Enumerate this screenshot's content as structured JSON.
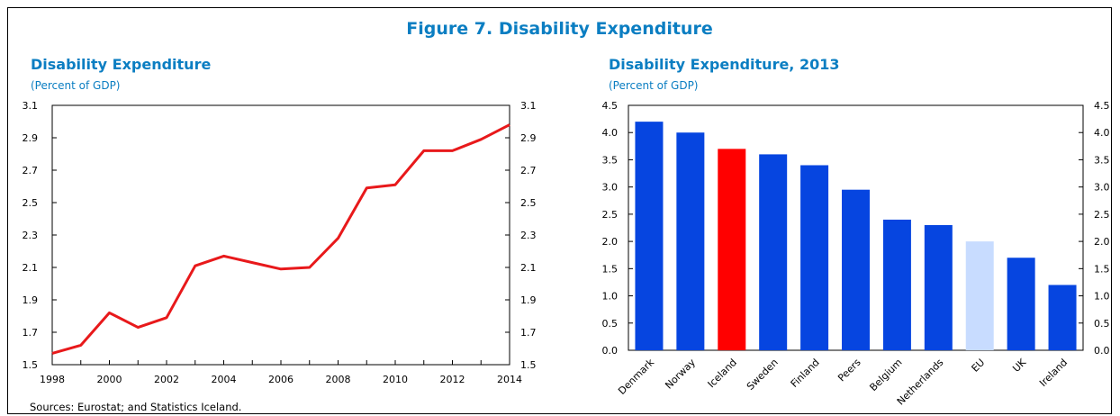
{
  "figure_title": "Figure 7. Disability Expenditure",
  "source": "Sources: Eurostat; and Statistics Iceland.",
  "colors": {
    "title_blue": "#0b7ec2",
    "line_red": "#e8191b",
    "bar_blue": "#0645e0",
    "bar_red": "#ff0000",
    "bar_light": "#c8dcff"
  },
  "chart_data": [
    {
      "type": "line",
      "title": "Disability Expenditure",
      "subtitle": "(Percent of GDP)",
      "x": [
        1998,
        1999,
        2000,
        2001,
        2002,
        2003,
        2004,
        2005,
        2006,
        2007,
        2008,
        2009,
        2010,
        2011,
        2012,
        2013,
        2014
      ],
      "xticks": [
        "1998",
        "2000",
        "2002",
        "2004",
        "2006",
        "2008",
        "2010",
        "2012",
        "2014"
      ],
      "yticks": [
        "1.5",
        "1.7",
        "1.9",
        "2.1",
        "2.3",
        "2.5",
        "2.7",
        "2.9",
        "3.1"
      ],
      "series": [
        {
          "values": [
            1.57,
            1.62,
            1.82,
            1.73,
            1.79,
            2.11,
            2.17,
            2.13,
            2.09,
            2.1,
            2.28,
            2.59,
            2.61,
            2.82,
            2.82,
            2.89,
            2.98
          ]
        }
      ],
      "xlim": [
        1998,
        2014
      ],
      "ylim": [
        1.5,
        3.1
      ]
    },
    {
      "type": "bar",
      "title": "Disability Expenditure, 2013",
      "subtitle": "(Percent of GDP)",
      "categories": [
        "Denmark",
        "Norway",
        "Iceland",
        "Sweden",
        "Finland",
        "Peers",
        "Belgium",
        "Netherlands",
        "EU",
        "UK",
        "Ireland"
      ],
      "values": [
        4.2,
        4.0,
        3.7,
        3.6,
        3.4,
        2.95,
        2.4,
        2.3,
        2.0,
        1.7,
        1.2
      ],
      "bar_colors": [
        "#0645e0",
        "#0645e0",
        "#ff0000",
        "#0645e0",
        "#0645e0",
        "#0645e0",
        "#0645e0",
        "#0645e0",
        "#c8dcff",
        "#0645e0",
        "#0645e0"
      ],
      "yticks": [
        "0.0",
        "0.5",
        "1.0",
        "1.5",
        "2.0",
        "2.5",
        "3.0",
        "3.5",
        "4.0",
        "4.5"
      ],
      "ylim": [
        0,
        4.5
      ]
    }
  ]
}
